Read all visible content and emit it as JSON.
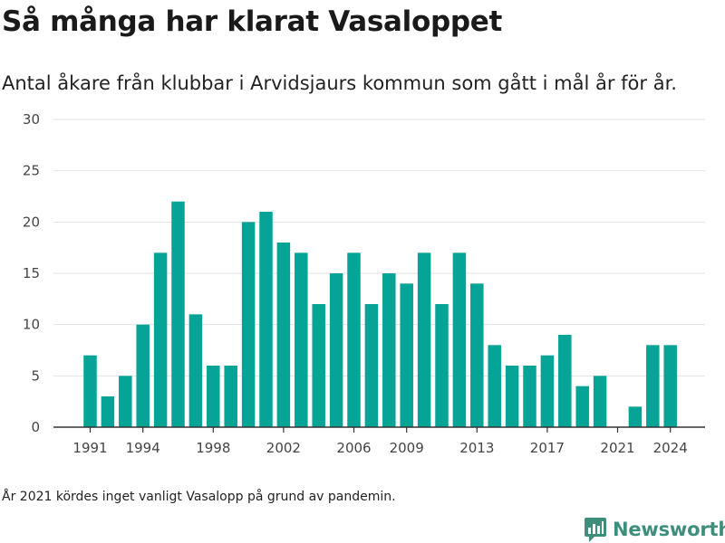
{
  "title": "Så många har klarat Vasaloppet",
  "subtitle": "Antal åkare från klubbar i Arvidsjaurs kommun som gått i mål år för år.",
  "footnote": "År 2021 kördes inget vanligt Vasalopp på grund av pandemin.",
  "logo": {
    "text": "Newsworthy",
    "icon": "newsworthy-logo-icon",
    "color": "#3d8f7c"
  },
  "chart_data": {
    "type": "bar",
    "title": "Så många har klarat Vasaloppet",
    "subtitle": "Antal åkare från klubbar i Arvidsjaurs kommun som gått i mål år för år.",
    "xlabel": "",
    "ylabel": "",
    "bar_color": "#05a497",
    "grid": true,
    "ylim": [
      0,
      30
    ],
    "y_ticks": [
      0,
      5,
      10,
      15,
      20,
      25,
      30
    ],
    "x_tick_labels": [
      "1991",
      "1994",
      "1998",
      "2002",
      "2006",
      "2009",
      "2013",
      "2017",
      "2021",
      "2024"
    ],
    "categories": [
      1991,
      1992,
      1993,
      1994,
      1995,
      1996,
      1997,
      1998,
      1999,
      2000,
      2001,
      2002,
      2003,
      2004,
      2005,
      2006,
      2007,
      2008,
      2009,
      2010,
      2011,
      2012,
      2013,
      2014,
      2015,
      2016,
      2017,
      2018,
      2019,
      2020,
      2021,
      2022,
      2023,
      2024
    ],
    "values": [
      7,
      3,
      5,
      10,
      17,
      22,
      11,
      6,
      6,
      20,
      21,
      18,
      17,
      12,
      15,
      17,
      12,
      15,
      14,
      17,
      12,
      17,
      14,
      8,
      6,
      6,
      7,
      9,
      4,
      5,
      0,
      2,
      8,
      8
    ]
  }
}
